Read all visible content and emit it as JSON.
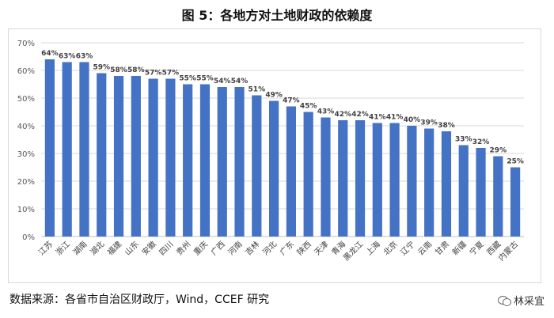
{
  "title": "图 5：各地方对土地财政的依赖度",
  "source": "数据来源：各省市自治区财政厅，Wind，CCEF 研究",
  "watermark": "林采宜",
  "watermark_icon": "wechat-icon",
  "chart_data": {
    "type": "bar",
    "title": "",
    "xlabel": "",
    "ylabel": "",
    "ylim": [
      0,
      70
    ],
    "yticks": [
      "0%",
      "10%",
      "20%",
      "30%",
      "40%",
      "50%",
      "60%",
      "70%"
    ],
    "grid": true,
    "bar_color": "#4472c4",
    "categories": [
      "江苏",
      "浙江",
      "湖南",
      "湖北",
      "福建",
      "山东",
      "安徽",
      "四川",
      "贵州",
      "重庆",
      "广西",
      "河南",
      "吉林",
      "河北",
      "广东",
      "陕西",
      "天津",
      "青海",
      "黑龙江",
      "上海",
      "北京",
      "辽宁",
      "云南",
      "甘肃",
      "新疆",
      "宁夏",
      "西藏",
      "内蒙古"
    ],
    "values": [
      64,
      63,
      63,
      59,
      58,
      58,
      57,
      57,
      55,
      55,
      54,
      54,
      51,
      49,
      47,
      45,
      43,
      42,
      42,
      41,
      41,
      40,
      39,
      38,
      33,
      32,
      29,
      25
    ],
    "labels": [
      "64%",
      "63%",
      "63%",
      "59%",
      "58%",
      "58%",
      "57%",
      "57%",
      "55%",
      "55%",
      "54%",
      "54%",
      "51%",
      "49%",
      "47%",
      "45%",
      "43%",
      "42%",
      "42%",
      "41%",
      "41%",
      "40%",
      "39%",
      "38%",
      "33%",
      "32%",
      "29%",
      "25%"
    ]
  }
}
